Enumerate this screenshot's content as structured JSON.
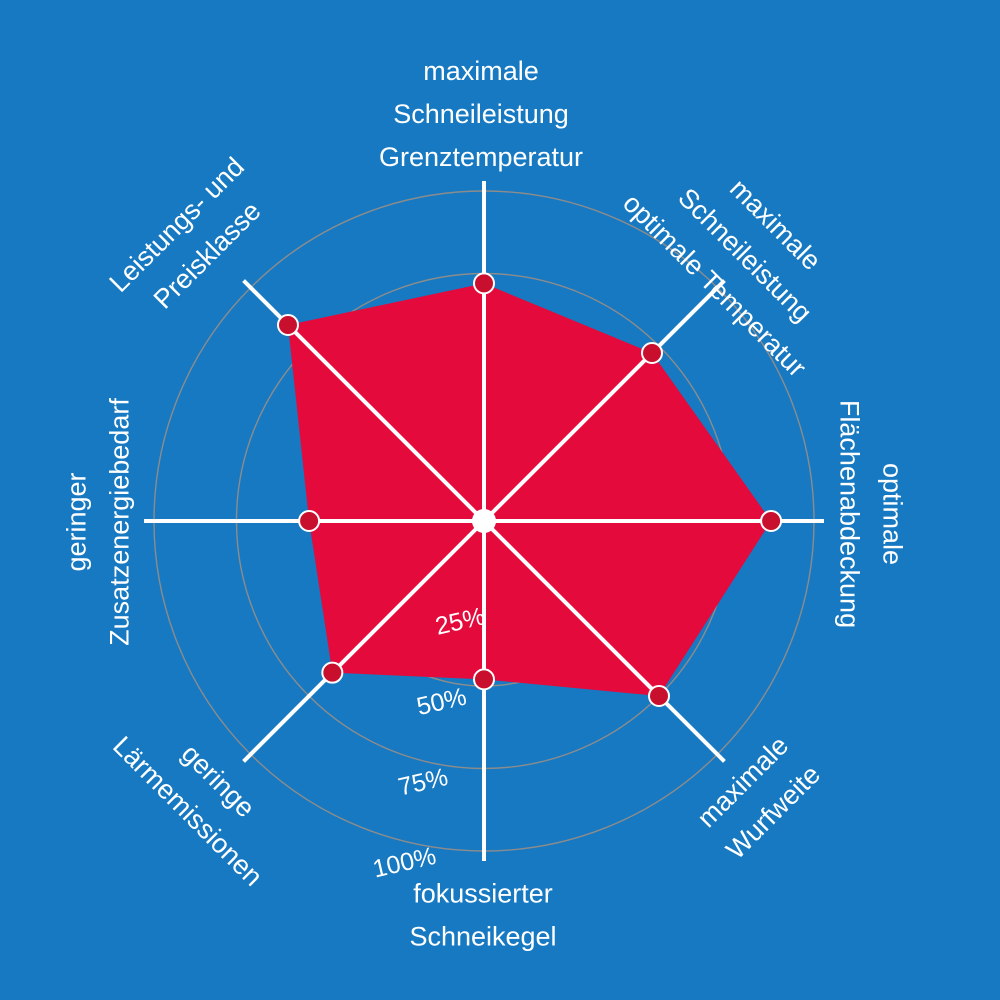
{
  "chart_data": {
    "type": "radar",
    "title": "",
    "series": [
      {
        "values": [
          72,
          72,
          87,
          75,
          48,
          65,
          53,
          84
        ]
      }
    ],
    "axes": [
      [
        "maximale",
        "Schneileistung",
        "Grenztemperatur"
      ],
      [
        "maximale",
        "Schneileistung",
        "optimale Temperatur"
      ],
      [
        "optimale",
        "Flächenabdeckung"
      ],
      [
        "maximale",
        "Wurfweite"
      ],
      [
        "fokussierter",
        "Schneikegel"
      ],
      [
        "geringe",
        "Lärmemissionen"
      ],
      [
        "geringer",
        "Zusatzenergiebedarf"
      ],
      [
        "Leistungs- und",
        "Preisklasse"
      ]
    ],
    "radial_ticks": [
      "25%",
      "50%",
      "75%",
      "100%"
    ],
    "rmax": 100,
    "grid": true,
    "colors": {
      "background": "#1679c2",
      "fill": "#e40a3c",
      "marker": "#c8102e",
      "spokes": "#ffffff",
      "grid": "#8c8c8c"
    }
  }
}
